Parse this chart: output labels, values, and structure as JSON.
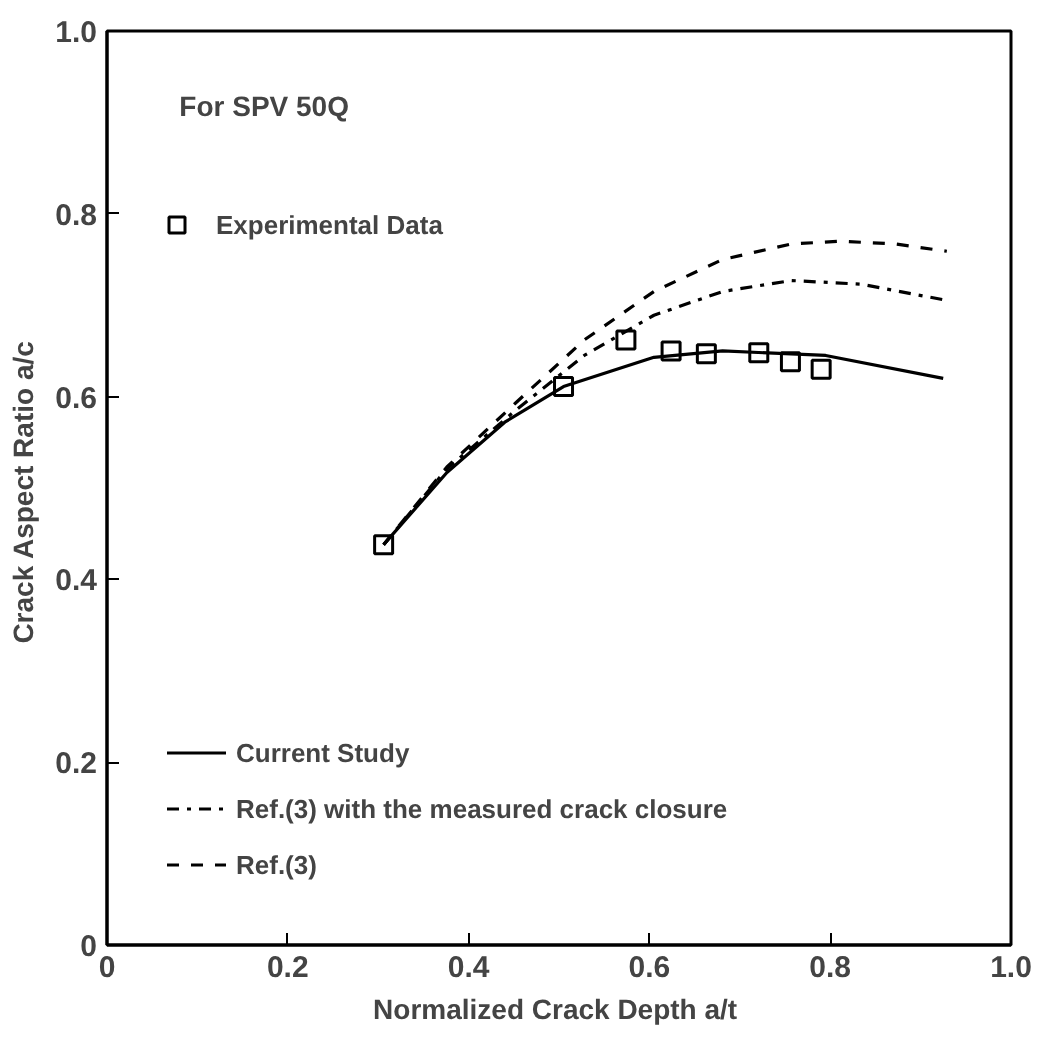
{
  "chart_data": {
    "type": "line",
    "xlabel": "Normalized Crack Depth  a/t",
    "ylabel": "Crack Aspect Ratio  a/c",
    "annotations": [
      "For SPV 50Q"
    ],
    "xlim": [
      0,
      1.0
    ],
    "ylim": [
      0,
      1.0
    ],
    "xticks": [
      0,
      0.2,
      0.4,
      0.6,
      0.8,
      {
        "value": 1,
        "label": "1.0"
      }
    ],
    "yticks": [
      0,
      0.2,
      0.4,
      0.6,
      0.8,
      {
        "value": 1,
        "label": "1.0"
      }
    ],
    "grid": false,
    "legend": "left",
    "series": [
      {
        "name": "Experimental Data",
        "type": "scatter",
        "marker": "square",
        "color": "#000000",
        "x": [
          0.306,
          0.505,
          0.574,
          0.624,
          0.663,
          0.721,
          0.756,
          0.79
        ],
        "values": [
          0.438,
          0.611,
          0.662,
          0.65,
          0.647,
          0.648,
          0.638,
          0.63
        ]
      },
      {
        "name": "Current Study",
        "line_style": "solid",
        "color": "#000000",
        "x": [
          0.306,
          0.376,
          0.44,
          0.505,
          0.605,
          0.681,
          0.795,
          0.925
        ],
        "values": [
          0.438,
          0.517,
          0.572,
          0.611,
          0.643,
          0.65,
          0.645,
          0.62
        ]
      },
      {
        "name": "Ref.(3) with the measured crack closure",
        "line_style": "dashdot",
        "color": "#000000",
        "x": [
          0.306,
          0.376,
          0.452,
          0.528,
          0.605,
          0.681,
          0.757,
          0.834,
          0.925
        ],
        "values": [
          0.438,
          0.521,
          0.585,
          0.645,
          0.689,
          0.715,
          0.727,
          0.723,
          0.706
        ]
      },
      {
        "name": "Ref.(3)",
        "line_style": "dashed",
        "color": "#000000",
        "x": [
          0.306,
          0.376,
          0.452,
          0.528,
          0.605,
          0.681,
          0.757,
          0.811,
          0.872,
          0.929
        ],
        "values": [
          0.438,
          0.523,
          0.593,
          0.662,
          0.715,
          0.75,
          0.767,
          0.77,
          0.767,
          0.759
        ]
      }
    ]
  }
}
